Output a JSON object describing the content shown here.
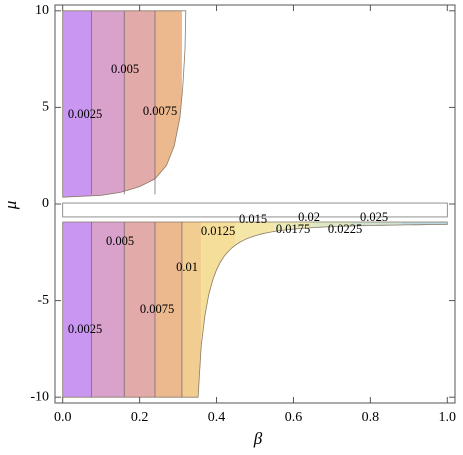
{
  "chart_data": {
    "type": "contour",
    "x_label": "β",
    "y_label": "μ",
    "levels": [
      0.0025,
      0.005,
      0.0075,
      0.01,
      0.0125,
      0.015,
      0.0175,
      0.02,
      0.0225,
      0.025
    ],
    "xlim": [
      -0.02,
      1.02
    ],
    "xticks": [
      {
        "value": 0,
        "label": "0.0"
      },
      0.2,
      0.4,
      0.6,
      0.8,
      {
        "value": 1,
        "label": "1.0"
      }
    ],
    "ylim": [
      -10.3,
      10.3
    ],
    "yticks": [
      -10,
      -5,
      0,
      5,
      10
    ]
  }
}
